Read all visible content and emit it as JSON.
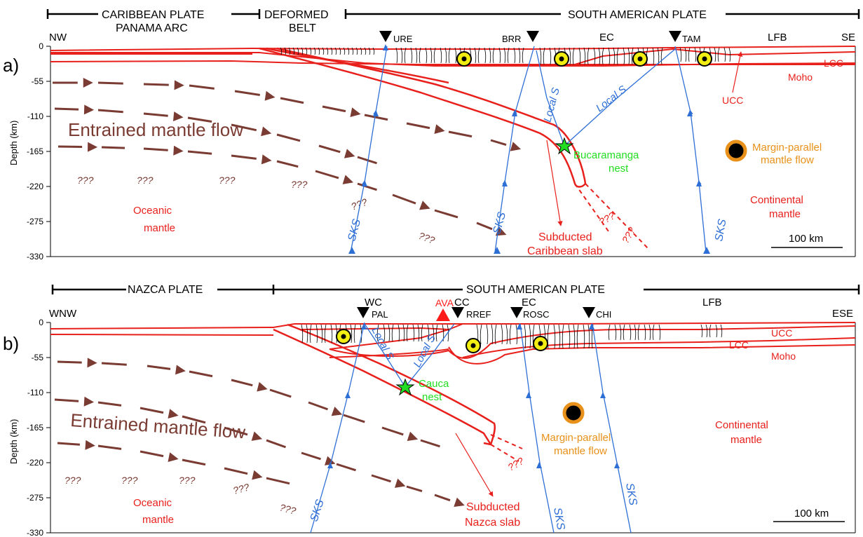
{
  "colors": {
    "plate": "#e8201c",
    "ray": "#2e6fd6",
    "flow": "#7a3b33",
    "nest": "#22dd22",
    "margin": "#e8911a",
    "station": "#000000",
    "volcano": "#ff1a1a",
    "axis": "#000000",
    "circle_fill": "#f3ee12"
  },
  "panel_a": {
    "label": "a)",
    "ylabel": "Depth (km)",
    "yticks": [
      "0",
      "-55",
      "-110",
      "-165",
      "-220",
      "-275",
      "-330"
    ],
    "plates": [
      "CARIBBEAN PLATE",
      "PANAMA ARC",
      "DEFORMED",
      "BELT",
      "SOUTH AMERICAN PLATE"
    ],
    "directions": [
      "NW",
      "SE"
    ],
    "stations": [
      "URE",
      "BRR",
      "TAM"
    ],
    "regions": [
      "EC",
      "LFB"
    ],
    "crust": [
      "LCC",
      "Moho",
      "UCC"
    ],
    "flow_label": "Entrained mantle flow",
    "unknown": "???",
    "oceanic": [
      "Oceanic",
      "mantle"
    ],
    "continental": [
      "Continental",
      "mantle"
    ],
    "slab": [
      "Subducted",
      "Caribbean slab"
    ],
    "nest": [
      "Bucaramanga",
      "nest"
    ],
    "margin": [
      "Margin-parallel",
      "mantle flow"
    ],
    "sks": "SKS",
    "local_s": "Local S",
    "scale": "100 km"
  },
  "panel_b": {
    "label": "b)",
    "ylabel": "Depth (km)",
    "yticks": [
      "0",
      "-55",
      "-110",
      "-165",
      "-220",
      "-275",
      "-330"
    ],
    "plates": [
      "NAZCA PLATE",
      "SOUTH AMERICAN PLATE"
    ],
    "directions": [
      "WNW",
      "ESE"
    ],
    "stations": [
      "PAL",
      "RREF",
      "ROSC",
      "CHI"
    ],
    "volcano": "AVA",
    "regions": [
      "WC",
      "CC",
      "EC",
      "LFB"
    ],
    "crust": [
      "UCC",
      "LCC",
      "Moho"
    ],
    "flow_label": "Entrained mantle flow",
    "unknown": "???",
    "oceanic": [
      "Oceanic",
      "mantle"
    ],
    "continental": [
      "Continental",
      "mantle"
    ],
    "slab": [
      "Subducted",
      "Nazca slab"
    ],
    "nest": [
      "Cauca",
      "nest"
    ],
    "margin": [
      "Margin-parallel",
      "mantle flow"
    ],
    "sks": "SKS",
    "local_s": "Local S",
    "scale": "100 km"
  }
}
